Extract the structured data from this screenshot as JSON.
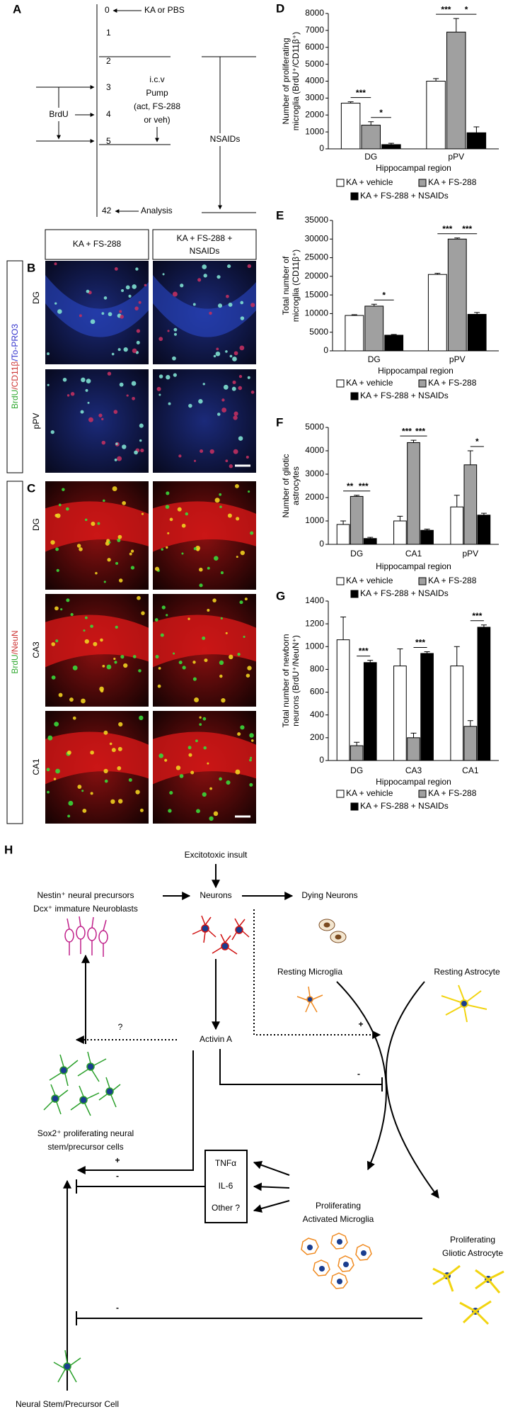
{
  "panel_a": {
    "letter": "A",
    "timepoints": [
      "0",
      "1",
      "2",
      "3",
      "4",
      "5",
      "42"
    ],
    "ka": "KA or PBS",
    "icv": "i.c.v",
    "pump": "Pump",
    "pump_detail1": "(act, FS-288",
    "pump_detail2": "or veh)",
    "nsaids": "NSAIDs",
    "brdu": "BrdU",
    "analysis": "Analysis"
  },
  "panel_b": {
    "letter": "B",
    "header_col1": "KA + FS-288",
    "header_col2": [
      "KA + FS-288 +",
      "NSAIDs"
    ],
    "stain": [
      "BrdU",
      "/CD11β",
      "/To-PRO3"
    ],
    "rows": [
      "DG",
      "pPV"
    ]
  },
  "panel_c": {
    "letter": "C",
    "stain": [
      "BrdU",
      "/NeuN"
    ],
    "rows": [
      "DG",
      "CA3",
      "CA1"
    ]
  },
  "chart_data": [
    {
      "type": "bar",
      "panel": "D",
      "ylabel": [
        "Number of proliferating",
        "microglia (BrdU⁺/CD11β⁺)"
      ],
      "xlabel": "Hippocampal region",
      "categories": [
        "DG",
        "pPV"
      ],
      "series": [
        {
          "name": "KA + vehicle",
          "color": "#ffffff",
          "values": [
            2700,
            4000
          ],
          "errors": [
            80,
            150
          ]
        },
        {
          "name": "KA + FS-288",
          "color": "#a0a0a0",
          "values": [
            1400,
            6900
          ],
          "errors": [
            200,
            800
          ]
        },
        {
          "name": "KA + FS-288 + NSAIDs",
          "color": "#000000",
          "values": [
            250,
            950
          ],
          "errors": [
            80,
            350
          ]
        }
      ],
      "significance": [
        [
          "***",
          "*"
        ],
        [
          "***",
          "*"
        ]
      ],
      "ylim": [
        0,
        8000
      ],
      "yticks": [
        0,
        1000,
        2000,
        3000,
        4000,
        5000,
        6000,
        7000,
        8000
      ]
    },
    {
      "type": "bar",
      "panel": "E",
      "ylabel": [
        "Total number of",
        "microglia (CD11β⁺)"
      ],
      "xlabel": "Hippocampal region",
      "categories": [
        "DG",
        "pPV"
      ],
      "series": [
        {
          "name": "KA + vehicle",
          "color": "#ffffff",
          "values": [
            9500,
            20500
          ],
          "errors": [
            200,
            300
          ]
        },
        {
          "name": "KA + FS-288",
          "color": "#a0a0a0",
          "values": [
            12000,
            30000
          ],
          "errors": [
            500,
            300
          ]
        },
        {
          "name": "KA + FS-288 + NSAIDs",
          "color": "#000000",
          "values": [
            4200,
            9800
          ],
          "errors": [
            200,
            500
          ]
        }
      ],
      "significance": [
        [
          null,
          "*"
        ],
        [
          "***",
          "***"
        ]
      ],
      "ylim": [
        0,
        35000
      ],
      "yticks": [
        0,
        5000,
        10000,
        15000,
        20000,
        25000,
        30000,
        35000
      ]
    },
    {
      "type": "bar",
      "panel": "F",
      "ylabel": [
        "Number of gliotic",
        "astrocytes"
      ],
      "xlabel": "Hippocampal region",
      "categories": [
        "DG",
        "CA1",
        "pPV"
      ],
      "series": [
        {
          "name": "KA + vehicle",
          "color": "#ffffff",
          "values": [
            850,
            1000,
            1600
          ],
          "errors": [
            150,
            200,
            500
          ]
        },
        {
          "name": "KA + FS-288",
          "color": "#a0a0a0",
          "values": [
            2050,
            4350,
            3400
          ],
          "errors": [
            50,
            100,
            600
          ]
        },
        {
          "name": "KA + FS-288 + NSAIDs",
          "color": "#000000",
          "values": [
            250,
            600,
            1250
          ],
          "errors": [
            50,
            50,
            80
          ]
        }
      ],
      "significance": [
        [
          "**",
          "***"
        ],
        [
          "***",
          "***"
        ],
        [
          null,
          "*"
        ]
      ],
      "ylim": [
        0,
        5000
      ],
      "yticks": [
        0,
        1000,
        2000,
        3000,
        4000,
        5000
      ]
    },
    {
      "type": "bar",
      "panel": "G",
      "ylabel": [
        "Total number of newborn",
        "neurons (BrdU⁺/NeuN⁺)"
      ],
      "xlabel": "Hippocampal region",
      "categories": [
        "DG",
        "CA3",
        "CA1"
      ],
      "series": [
        {
          "name": "KA + vehicle",
          "color": "#ffffff",
          "values": [
            1060,
            830,
            830
          ],
          "errors": [
            200,
            150,
            170
          ]
        },
        {
          "name": "KA + FS-288",
          "color": "#a0a0a0",
          "values": [
            130,
            200,
            300
          ],
          "errors": [
            30,
            40,
            50
          ]
        },
        {
          "name": "KA + FS-288 + NSAIDs",
          "color": "#000000",
          "values": [
            860,
            940,
            1170
          ],
          "errors": [
            20,
            15,
            20
          ]
        }
      ],
      "significance": [
        [
          null,
          "***"
        ],
        [
          null,
          "***"
        ],
        [
          null,
          "***"
        ]
      ],
      "ylim": [
        0,
        1400
      ],
      "yticks": [
        0,
        200,
        400,
        600,
        800,
        1000,
        1200,
        1400
      ]
    }
  ],
  "panel_h": {
    "letter": "H",
    "insult": "Excitotoxic insult",
    "nestin": "Nestin⁺ neural precursors",
    "dcx": "Dcx⁺ immature Neuroblasts",
    "neurons": "Neurons",
    "dying": "Dying Neurons",
    "resting_microglia": "Resting Microglia",
    "resting_astrocyte": "Resting Astrocyte",
    "activin": "Activin A",
    "question": "?",
    "plus1": "+",
    "minus1": "-",
    "sox2": [
      "Sox2⁺ proliferating neural",
      "stem/precursor cells"
    ],
    "plus2": "+",
    "minus2": "-",
    "minus3": "-",
    "cytokines": [
      "TNFα",
      "IL-6",
      "Other ?"
    ],
    "prolif_microglia": [
      "Proliferating",
      "Activated Microglia"
    ],
    "prolif_astro": [
      "Proliferating",
      "Gliotic Astrocyte"
    ],
    "stem": "Neural Stem/Precursor Cell"
  }
}
